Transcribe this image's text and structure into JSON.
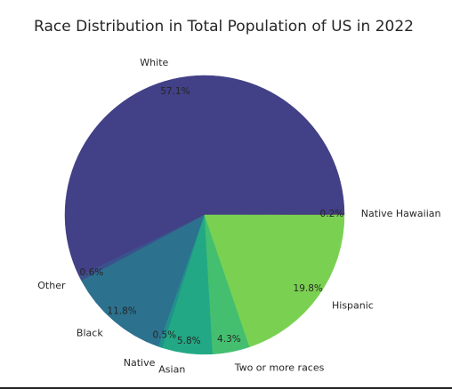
{
  "chart_data": {
    "type": "pie",
    "title": "Race Distribution in Total Population of US in 2022",
    "categories": [
      "Native Hawaiian",
      "White",
      "Other",
      "Black",
      "Native",
      "Asian",
      "Two or more races",
      "Hispanic"
    ],
    "values": [
      0.2,
      57.1,
      0.6,
      11.8,
      0.5,
      5.8,
      4.3,
      19.8
    ],
    "value_labels": [
      "0.2%",
      "57.1%",
      "0.6%",
      "11.8%",
      "0.5%",
      "5.8%",
      "4.3%",
      "19.8%"
    ],
    "colors": [
      "#46327e",
      "#424086",
      "#3b518b",
      "#2c718e",
      "#21918c",
      "#22a884",
      "#44bf70",
      "#7ad151"
    ],
    "start_angle_deg": 0,
    "direction": "counterclockwise"
  }
}
